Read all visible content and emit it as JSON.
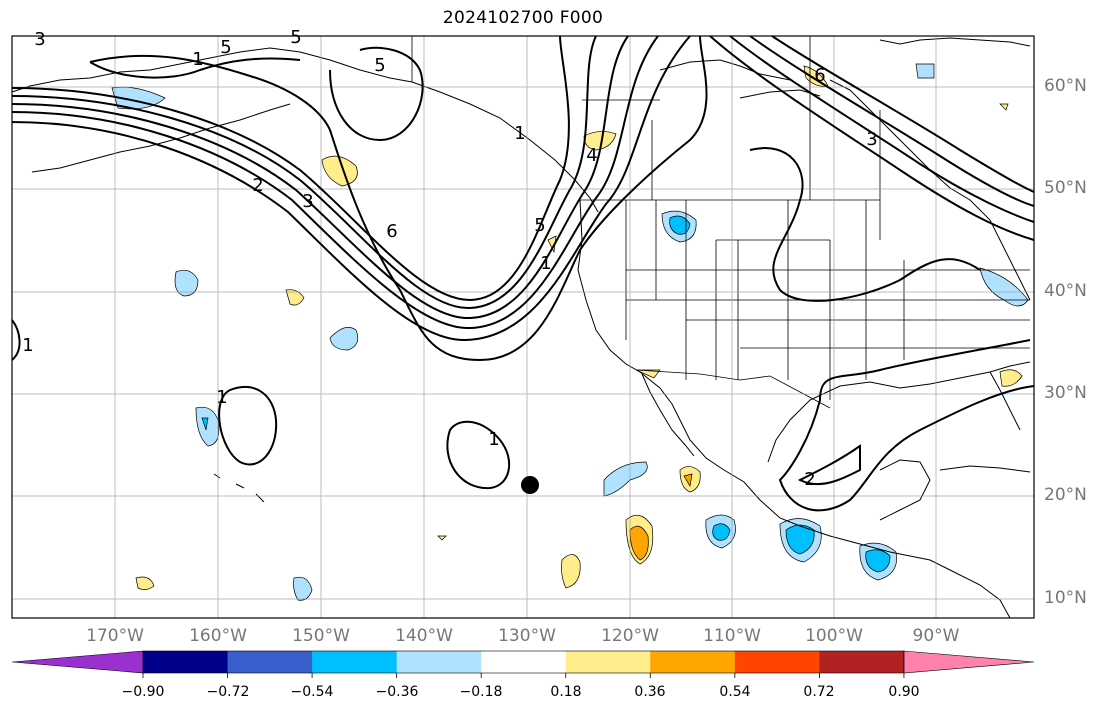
{
  "title": "2024102700 F000",
  "lat_labels": [
    "60°N",
    "50°N",
    "40°N",
    "30°N",
    "20°N",
    "10°N"
  ],
  "lon_labels": [
    "170°W",
    "160°W",
    "150°W",
    "140°W",
    "130°W",
    "120°W",
    "110°W",
    "100°W",
    "90°W"
  ],
  "contour_labels": [
    "3",
    "5",
    "5",
    "1",
    "2",
    "3",
    "6",
    "1",
    "5",
    "4",
    "1",
    "6",
    "3",
    "5",
    "1",
    "1",
    "1",
    "2"
  ],
  "colorbar": {
    "tick_labels": [
      "−0.90",
      "−0.72",
      "−0.54",
      "−0.36",
      "−0.18",
      "0.18",
      "0.36",
      "0.54",
      "0.72",
      "0.90"
    ],
    "colors": {
      "under": "#9a30d0",
      "bins": [
        "#00008b",
        "#3a5fcd",
        "#00bfff",
        "#b0e2ff",
        "#ffffff",
        "#ffec8b",
        "#ffa500",
        "#ff4500",
        "#b22222"
      ],
      "over": "#ff82ab"
    }
  },
  "marker": {
    "lon": -129.8,
    "lat": 21.0,
    "color": "#000000"
  }
}
